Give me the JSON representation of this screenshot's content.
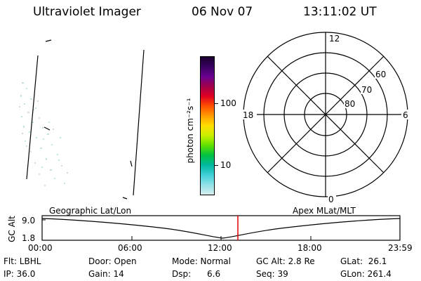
{
  "header": {
    "title": "Ultraviolet Imager",
    "date": "06 Nov 07",
    "time": "13:11:02 UT"
  },
  "colorbar": {
    "axis_label": "photon cm⁻²s⁻¹",
    "tick_100": "100",
    "tick_10": "10",
    "colors": [
      "#1a0030",
      "#3a0060",
      "#6a0090",
      "#a0004a",
      "#e00020",
      "#ff5000",
      "#ff9c00",
      "#ffe000",
      "#c8f000",
      "#60e000",
      "#00c040",
      "#00b8a0",
      "#40d0d8",
      "#90e0e8",
      "#d8eef0"
    ]
  },
  "polar_plot": {
    "mlt_labels": {
      "top": "12",
      "left": "18",
      "right": "6",
      "bottom": "0"
    },
    "lat_labels": {
      "inner": "80",
      "middle": "70",
      "outer": "60"
    }
  },
  "timeline": {
    "axis_label": "GC Alt",
    "ytick_top": "9.0",
    "ytick_bottom": "1.8",
    "left_caption": "Geographic Lat/Lon",
    "right_caption": "Apex MLat/MLT",
    "xticks": [
      "00:00",
      "06:00",
      "12:00",
      "18:00",
      "23:59"
    ],
    "marker_color": "#e00000"
  },
  "info": {
    "flt": "Flt: LBHL",
    "ip": "IP: 36.0",
    "door": "Door: Open",
    "gain": "Gain: 14",
    "mode": "Mode: Normal",
    "dsp": "Dsp:      6.6",
    "gc_alt": "GC Alt: 2.8 Re",
    "seq": "Seq: 39",
    "glat": "GLat:  26.1",
    "glon": "GLon: 261.4"
  }
}
